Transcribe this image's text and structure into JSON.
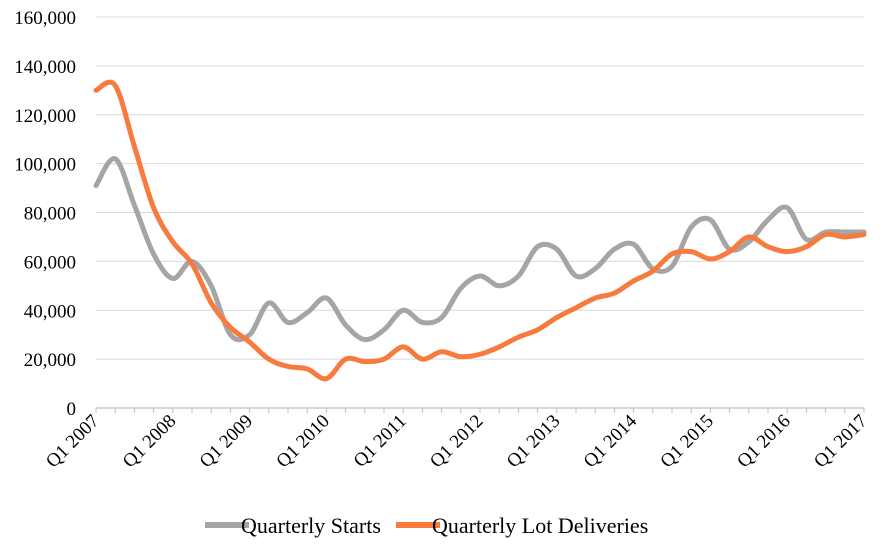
{
  "chart_data": {
    "type": "line",
    "title": "",
    "xlabel": "",
    "ylabel": "",
    "ylim": [
      0,
      160000
    ],
    "yticks": [
      0,
      20000,
      40000,
      60000,
      80000,
      100000,
      120000,
      140000,
      160000
    ],
    "ytick_labels": [
      "0",
      "20,000",
      "40,000",
      "60,000",
      "80,000",
      "100,000",
      "120,000",
      "140,000",
      "160,000"
    ],
    "xtick_labels": [
      "Q1 2007",
      "Q1 2008",
      "Q1 2009",
      "Q1 2010",
      "Q1 2011",
      "Q1 2012",
      "Q1 2013",
      "Q1 2014",
      "Q1 2015",
      "Q1 2016",
      "Q1 2017"
    ],
    "grid": true,
    "legend_position": "bottom",
    "categories": [
      "Q1 2007",
      "Q2 2007",
      "Q3 2007",
      "Q4 2007",
      "Q1 2008",
      "Q2 2008",
      "Q3 2008",
      "Q4 2008",
      "Q1 2009",
      "Q2 2009",
      "Q3 2009",
      "Q4 2009",
      "Q1 2010",
      "Q2 2010",
      "Q3 2010",
      "Q4 2010",
      "Q1 2011",
      "Q2 2011",
      "Q3 2011",
      "Q4 2011",
      "Q1 2012",
      "Q2 2012",
      "Q3 2012",
      "Q4 2012",
      "Q1 2013",
      "Q2 2013",
      "Q3 2013",
      "Q4 2013",
      "Q1 2014",
      "Q2 2014",
      "Q3 2014",
      "Q4 2014",
      "Q1 2015",
      "Q2 2015",
      "Q3 2015",
      "Q4 2015",
      "Q1 2016",
      "Q2 2016",
      "Q3 2016",
      "Q4 2016",
      "Q1 2017"
    ],
    "series": [
      {
        "name": "Quarterly Starts",
        "color": "#a5a5a5",
        "values": [
          91000,
          102000,
          83000,
          63000,
          53000,
          60000,
          50000,
          30000,
          30000,
          43000,
          35000,
          39000,
          45000,
          34000,
          28000,
          32000,
          40000,
          35000,
          37000,
          49000,
          54000,
          50000,
          54000,
          66000,
          65000,
          54000,
          57000,
          65000,
          67000,
          57000,
          58000,
          74000,
          77000,
          65000,
          68000,
          77000,
          82000,
          69000,
          72000,
          72000,
          72000
        ]
      },
      {
        "name": "Quarterly Lot Deliveries",
        "color": "#f77b3f",
        "values": [
          130000,
          132000,
          107000,
          82000,
          68000,
          59000,
          43000,
          33000,
          27000,
          20000,
          17000,
          16000,
          12000,
          20000,
          19000,
          20000,
          25000,
          20000,
          23000,
          21000,
          22000,
          25000,
          29000,
          32000,
          37000,
          41000,
          45000,
          47000,
          52000,
          56000,
          63000,
          64000,
          61000,
          64000,
          70000,
          66000,
          64000,
          66000,
          71000,
          70000,
          71000
        ]
      }
    ]
  }
}
